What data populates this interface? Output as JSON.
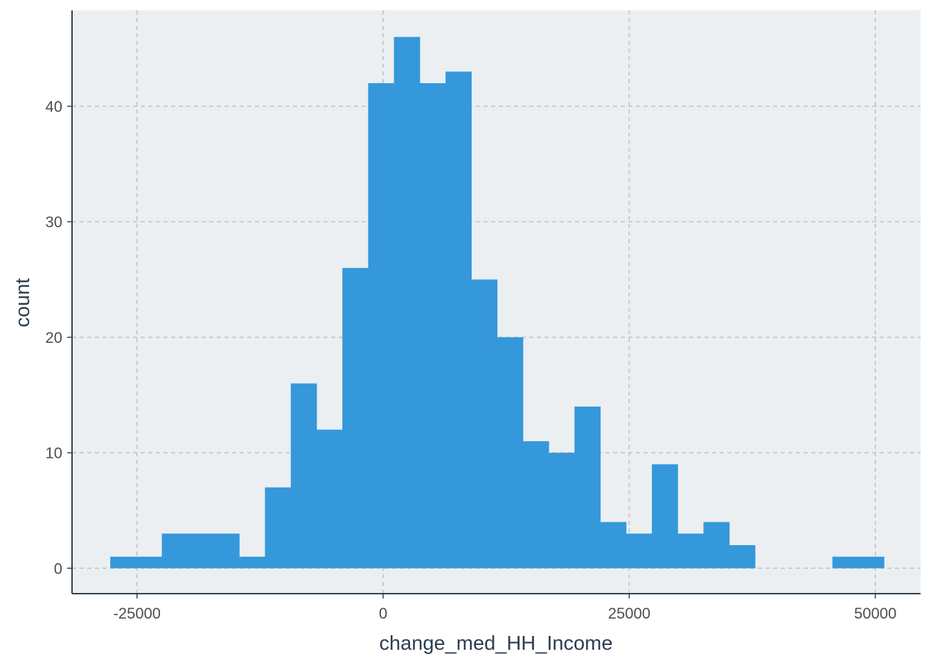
{
  "chart_data": {
    "type": "bar",
    "title": "",
    "xlabel": "change_med_HH_Income",
    "ylabel": "count",
    "bin_width": 2620,
    "bins": [
      {
        "x0": -27720,
        "x1": -25100,
        "count": 1
      },
      {
        "x0": -25100,
        "x1": -22480,
        "count": 1
      },
      {
        "x0": -22480,
        "x1": -19860,
        "count": 3
      },
      {
        "x0": -19860,
        "x1": -17240,
        "count": 3
      },
      {
        "x0": -17240,
        "x1": -14620,
        "count": 3
      },
      {
        "x0": -14620,
        "x1": -12000,
        "count": 1
      },
      {
        "x0": -12000,
        "x1": -9380,
        "count": 7
      },
      {
        "x0": -9380,
        "x1": -6760,
        "count": 16
      },
      {
        "x0": -6760,
        "x1": -4140,
        "count": 12
      },
      {
        "x0": -4140,
        "x1": -1520,
        "count": 26
      },
      {
        "x0": -1520,
        "x1": 1100,
        "count": 42
      },
      {
        "x0": 1100,
        "x1": 3720,
        "count": 46
      },
      {
        "x0": 3720,
        "x1": 6340,
        "count": 42
      },
      {
        "x0": 6340,
        "x1": 8960,
        "count": 43
      },
      {
        "x0": 8960,
        "x1": 11580,
        "count": 25
      },
      {
        "x0": 11580,
        "x1": 14200,
        "count": 20
      },
      {
        "x0": 14200,
        "x1": 16820,
        "count": 11
      },
      {
        "x0": 16820,
        "x1": 19440,
        "count": 10
      },
      {
        "x0": 19440,
        "x1": 22060,
        "count": 14
      },
      {
        "x0": 22060,
        "x1": 24680,
        "count": 4
      },
      {
        "x0": 24680,
        "x1": 27300,
        "count": 3
      },
      {
        "x0": 27300,
        "x1": 29920,
        "count": 9
      },
      {
        "x0": 29920,
        "x1": 32540,
        "count": 3
      },
      {
        "x0": 32540,
        "x1": 35160,
        "count": 4
      },
      {
        "x0": 35160,
        "x1": 37780,
        "count": 2
      },
      {
        "x0": 37780,
        "x1": 40400,
        "count": 0
      },
      {
        "x0": 40400,
        "x1": 43020,
        "count": 0
      },
      {
        "x0": 43020,
        "x1": 45640,
        "count": 0
      },
      {
        "x0": 45640,
        "x1": 48260,
        "count": 1
      },
      {
        "x0": 48260,
        "x1": 50880,
        "count": 1
      }
    ],
    "xlim": [
      -31600,
      54600
    ],
    "ylim": [
      -2.2,
      48.3
    ],
    "x_ticks": [
      -25000,
      0,
      25000,
      50000
    ],
    "x_tick_labels": [
      "-25000",
      "0",
      "25000",
      "50000"
    ],
    "y_ticks": [
      0,
      10,
      20,
      30,
      40
    ],
    "y_tick_labels": [
      "0",
      "10",
      "20",
      "30",
      "40"
    ],
    "grid": true,
    "colors": {
      "bar": "#3598db",
      "panel_background": "#ebeff1",
      "grid": "#bfc3c5",
      "axis_line": "#2c3e50",
      "tick_label": "#4d4d4d",
      "axis_title": "#2c3e50"
    }
  }
}
